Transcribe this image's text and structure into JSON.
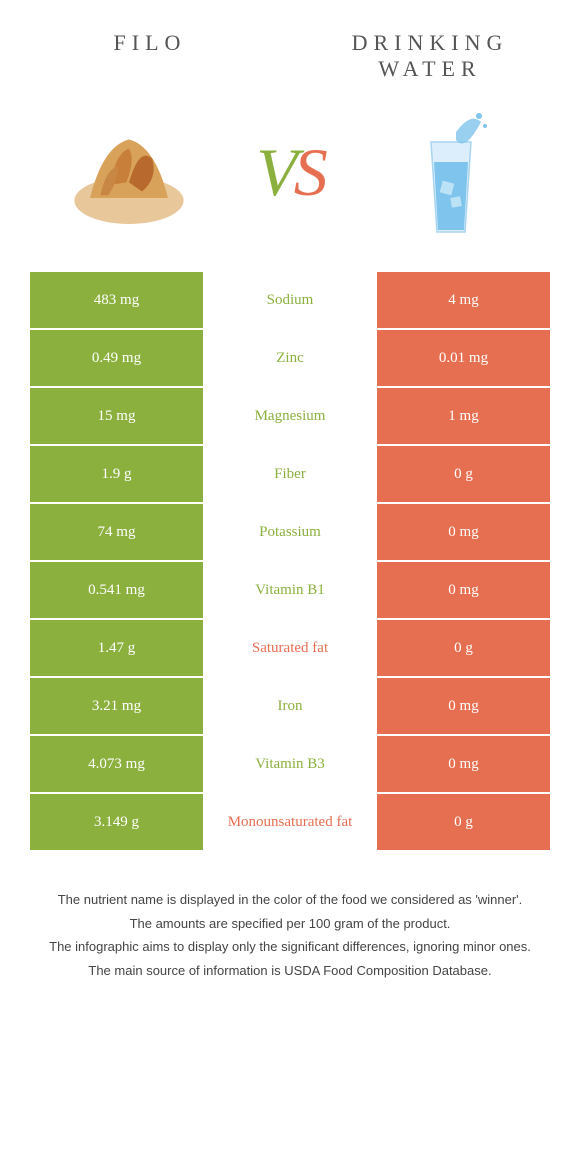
{
  "header": {
    "left_label": "Filo",
    "right_label": "Drinking water"
  },
  "vs": {
    "v": "V",
    "s": "S"
  },
  "colors": {
    "left": "#8bb03e",
    "right": "#e76f51",
    "mid_bg": "#ffffff"
  },
  "comparison": {
    "rows": [
      {
        "left_value": "483 mg",
        "nutrient": "Sodium",
        "right_value": "4 mg",
        "winner": "left"
      },
      {
        "left_value": "0.49 mg",
        "nutrient": "Zinc",
        "right_value": "0.01 mg",
        "winner": "left"
      },
      {
        "left_value": "15 mg",
        "nutrient": "Magnesium",
        "right_value": "1 mg",
        "winner": "left"
      },
      {
        "left_value": "1.9 g",
        "nutrient": "Fiber",
        "right_value": "0 g",
        "winner": "left"
      },
      {
        "left_value": "74 mg",
        "nutrient": "Potassium",
        "right_value": "0 mg",
        "winner": "left"
      },
      {
        "left_value": "0.541 mg",
        "nutrient": "Vitamin B1",
        "right_value": "0 mg",
        "winner": "left"
      },
      {
        "left_value": "1.47 g",
        "nutrient": "Saturated fat",
        "right_value": "0 g",
        "winner": "right"
      },
      {
        "left_value": "3.21 mg",
        "nutrient": "Iron",
        "right_value": "0 mg",
        "winner": "left"
      },
      {
        "left_value": "4.073 mg",
        "nutrient": "Vitamin B3",
        "right_value": "0 mg",
        "winner": "left"
      },
      {
        "left_value": "3.149 g",
        "nutrient": "Monounsaturated fat",
        "right_value": "0 g",
        "winner": "right"
      }
    ]
  },
  "footer": {
    "line1": "The nutrient name is displayed in the color of the food we considered as 'winner'.",
    "line2": "The amounts are specified per 100 gram of the product.",
    "line3": "The infographic aims to display only the significant differences, ignoring minor ones.",
    "line4": "The main source of information is USDA Food Composition Database."
  }
}
